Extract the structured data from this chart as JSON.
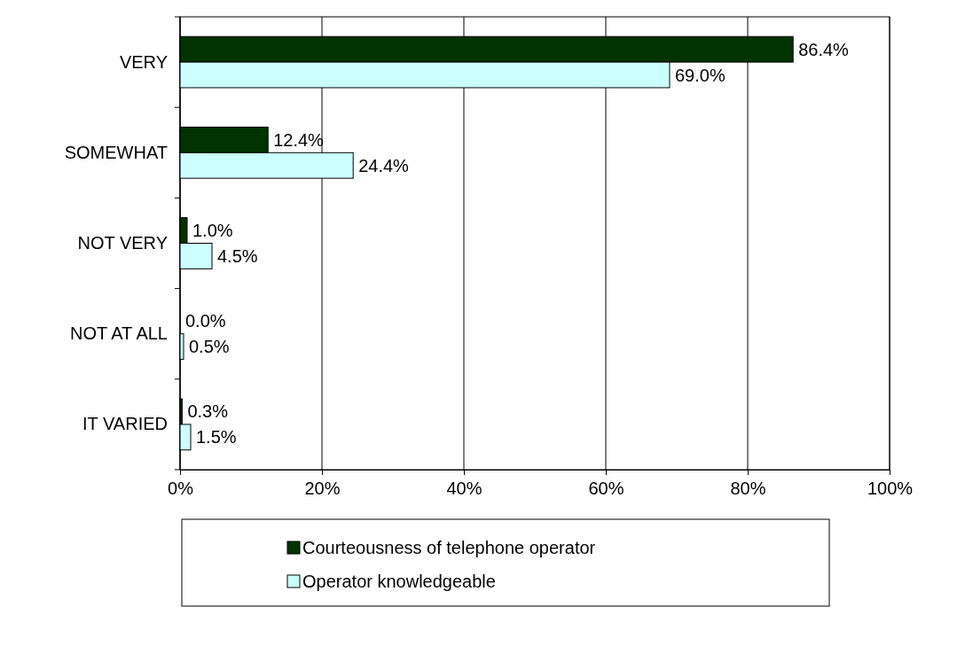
{
  "chart_data": {
    "type": "bar",
    "orientation": "horizontal",
    "categories": [
      "VERY",
      "SOMEWHAT",
      "NOT VERY",
      "NOT AT ALL",
      "IT VARIED"
    ],
    "series": [
      {
        "name": "Courteousness of telephone operator",
        "color": "#003300",
        "values": [
          86.4,
          12.4,
          1.0,
          0.0,
          0.3
        ],
        "value_labels": [
          "86.4%",
          "12.4%",
          "1.0%",
          "0.0%",
          "0.3%"
        ]
      },
      {
        "name": "Operator knowledgeable",
        "color": "#ccffff",
        "values": [
          69.0,
          24.4,
          4.5,
          0.5,
          1.5
        ],
        "value_labels": [
          "69.0%",
          "24.4%",
          "4.5%",
          "0.5%",
          "1.5%"
        ]
      }
    ],
    "xlim": [
      0,
      100
    ],
    "xticks": [
      {
        "value": 0,
        "label": "0%"
      },
      {
        "value": 20,
        "label": "20%"
      },
      {
        "value": 40,
        "label": "40%"
      },
      {
        "value": 60,
        "label": "60%"
      },
      {
        "value": 80,
        "label": "80%"
      },
      {
        "value": 100,
        "label": "100%"
      }
    ],
    "grid": "x",
    "legend": "bottom"
  }
}
